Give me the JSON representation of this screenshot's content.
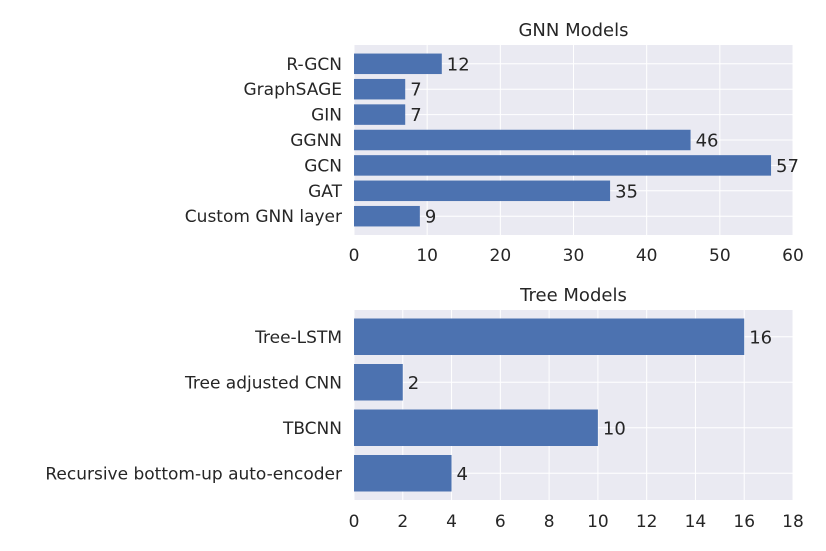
{
  "chart_data": [
    {
      "type": "bar",
      "orientation": "horizontal",
      "title": "GNN Models",
      "categories": [
        "R-GCN",
        "GraphSAGE",
        "GIN",
        "GGNN",
        "GCN",
        "GAT",
        "Custom GNN layer"
      ],
      "values": [
        12,
        7,
        7,
        46,
        57,
        35,
        9
      ],
      "xlim": [
        0,
        60
      ],
      "xticks": [
        0,
        10,
        20,
        30,
        40,
        50,
        60
      ],
      "grid": true,
      "bar_color": "#4c72b0",
      "background_color": "#eaeaf2"
    },
    {
      "type": "bar",
      "orientation": "horizontal",
      "title": "Tree Models",
      "categories": [
        "Tree-LSTM",
        "Tree adjusted CNN",
        "TBCNN",
        "Recursive bottom-up auto-encoder"
      ],
      "values": [
        16,
        2,
        10,
        4
      ],
      "xlim": [
        0,
        18
      ],
      "xticks": [
        0,
        2,
        4,
        6,
        8,
        10,
        12,
        14,
        16,
        18
      ],
      "grid": true,
      "bar_color": "#4c72b0",
      "background_color": "#eaeaf2"
    }
  ]
}
